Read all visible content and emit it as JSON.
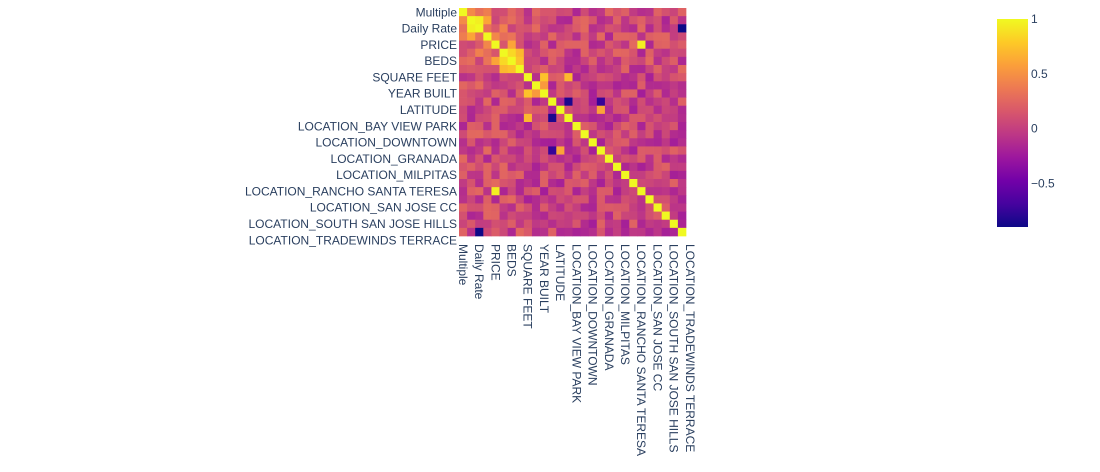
{
  "chart_data": {
    "type": "heatmap",
    "title": "",
    "xlabel": "",
    "ylabel": "",
    "n_rows": 28,
    "n_cols": 28,
    "tick_labels": [
      "Multiple",
      "Daily Rate",
      "PRICE",
      "BEDS",
      "SQUARE FEET",
      "YEAR BUILT",
      "LATITUDE",
      "LOCATION_BAY VIEW PARK",
      "LOCATION_DOWNTOWN",
      "LOCATION_GRANADA",
      "LOCATION_MILPITAS",
      "LOCATION_RANCHO SANTA TERESA",
      "LOCATION_SAN JOSE CC",
      "LOCATION_SOUTH SAN JOSE HILLS",
      "LOCATION_TRADEWINDS TERRACE"
    ],
    "tick_positions": [
      0,
      2,
      4,
      6,
      8,
      10,
      12,
      14,
      16,
      18,
      20,
      22,
      24,
      26,
      28
    ],
    "zlim": [
      -0.9,
      1
    ],
    "colorscale": [
      "#0d0887",
      "#46039f",
      "#7201a8",
      "#9c179e",
      "#bd3786",
      "#d8576b",
      "#ed7953",
      "#fb9f3a",
      "#fdca26",
      "#f0f921"
    ],
    "colorbar": {
      "ticks": [
        1,
        0.5,
        0,
        -0.5
      ],
      "tick_labels": [
        "1",
        "0.5",
        "0",
        "−0.5"
      ]
    },
    "highlights": [
      {
        "row": 0,
        "col": 0,
        "value": 1
      },
      {
        "row": 1,
        "col": 2,
        "value": 0.95
      },
      {
        "row": 2,
        "col": 1,
        "value": 0.95
      },
      {
        "row": 1,
        "col": 3,
        "value": 0.6
      },
      {
        "row": 3,
        "col": 1,
        "value": 0.6
      },
      {
        "row": 5,
        "col": 6,
        "value": 0.85
      },
      {
        "row": 6,
        "col": 5,
        "value": 0.85
      },
      {
        "row": 6,
        "col": 7,
        "value": 0.75
      },
      {
        "row": 7,
        "col": 6,
        "value": 0.75
      },
      {
        "row": 5,
        "col": 7,
        "value": 0.7
      },
      {
        "row": 7,
        "col": 5,
        "value": 0.7
      },
      {
        "row": 4,
        "col": 6,
        "value": 0.6
      },
      {
        "row": 6,
        "col": 4,
        "value": 0.6
      },
      {
        "row": 8,
        "col": 10,
        "value": 0.75
      },
      {
        "row": 10,
        "col": 8,
        "value": 0.75
      },
      {
        "row": 9,
        "col": 10,
        "value": 0.55
      },
      {
        "row": 10,
        "col": 9,
        "value": 0.55
      },
      {
        "row": 4,
        "col": 22,
        "value": 0.95
      },
      {
        "row": 22,
        "col": 4,
        "value": 0.95
      },
      {
        "row": 13,
        "col": 11,
        "value": -0.85
      },
      {
        "row": 11,
        "col": 13,
        "value": -0.85
      },
      {
        "row": 13,
        "col": 8,
        "value": 0.7
      },
      {
        "row": 8,
        "col": 13,
        "value": 0.7
      },
      {
        "row": 12,
        "col": 17,
        "value": 0.6
      },
      {
        "row": 17,
        "col": 12,
        "value": 0.6
      },
      {
        "row": 11,
        "col": 17,
        "value": -0.75
      },
      {
        "row": 17,
        "col": 11,
        "value": -0.75
      },
      {
        "row": 2,
        "col": 27,
        "value": -0.9
      },
      {
        "row": 27,
        "col": 2,
        "value": -0.9
      }
    ]
  }
}
